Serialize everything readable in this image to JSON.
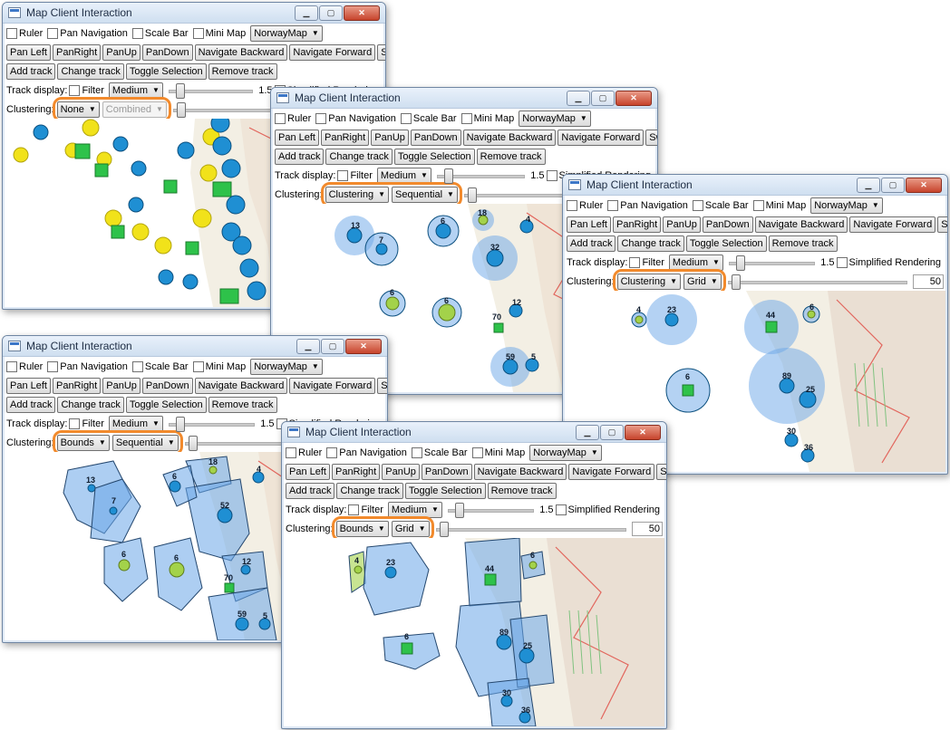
{
  "window_title": "Map Client Interaction",
  "toolbar": {
    "ruler": "Ruler",
    "pan_navigation": "Pan Navigation",
    "scale_bar": "Scale Bar",
    "mini_map": "Mini Map",
    "map_select": "NorwayMap",
    "pan_left": "Pan Left",
    "pan_right": "PanRight",
    "pan_up": "PanUp",
    "pan_down": "PanDown",
    "navigate_backward": "Navigate Backward",
    "navigate_forward": "Navigate Forward",
    "switch_grid": "Switch Grid!",
    "add_track": "Add track",
    "change_track": "Change track",
    "toggle_selection": "Toggle Selection",
    "remove_track": "Remove track",
    "track_display": "Track display:",
    "filter": "Filter",
    "medium": "Medium",
    "slider_value": "1.5",
    "simplified_rendering": "Simplified Rendering",
    "clustering_label": "Clustering:",
    "cluster_value": "50"
  },
  "windows": [
    {
      "id": "w1",
      "clustering_mode": "None",
      "clustering_method": "Combined",
      "method_disabled": true
    },
    {
      "id": "w2",
      "clustering_mode": "Clustering",
      "clustering_method": "Sequential",
      "method_disabled": false
    },
    {
      "id": "w3",
      "clustering_mode": "Clustering",
      "clustering_method": "Grid",
      "method_disabled": false
    },
    {
      "id": "w4",
      "clustering_mode": "Bounds",
      "clustering_method": "Sequential",
      "method_disabled": false
    },
    {
      "id": "w5",
      "clustering_mode": "Bounds",
      "clustering_method": "Grid",
      "method_disabled": false
    }
  ],
  "cluster_counts": {
    "w2": [
      "13",
      "7",
      "6",
      "18",
      "4",
      "32",
      "6",
      "6",
      "12",
      "70",
      "59",
      "5"
    ],
    "w3": [
      "4",
      "23",
      "44",
      "6",
      "6",
      "89",
      "25",
      "30",
      "36"
    ],
    "w4": [
      "13",
      "7",
      "6",
      "18",
      "4",
      "52",
      "6",
      "6",
      "12",
      "70",
      "59",
      "5"
    ],
    "w5": [
      "4",
      "23",
      "44",
      "6",
      "6",
      "89",
      "25",
      "30",
      "36"
    ]
  },
  "colors": {
    "highlight": "#f28a2c",
    "cluster_fill": "#6aa6e8",
    "track_blue": "#1f8fd3",
    "track_yellow": "#f1e21a",
    "track_green": "#2ec24a"
  }
}
